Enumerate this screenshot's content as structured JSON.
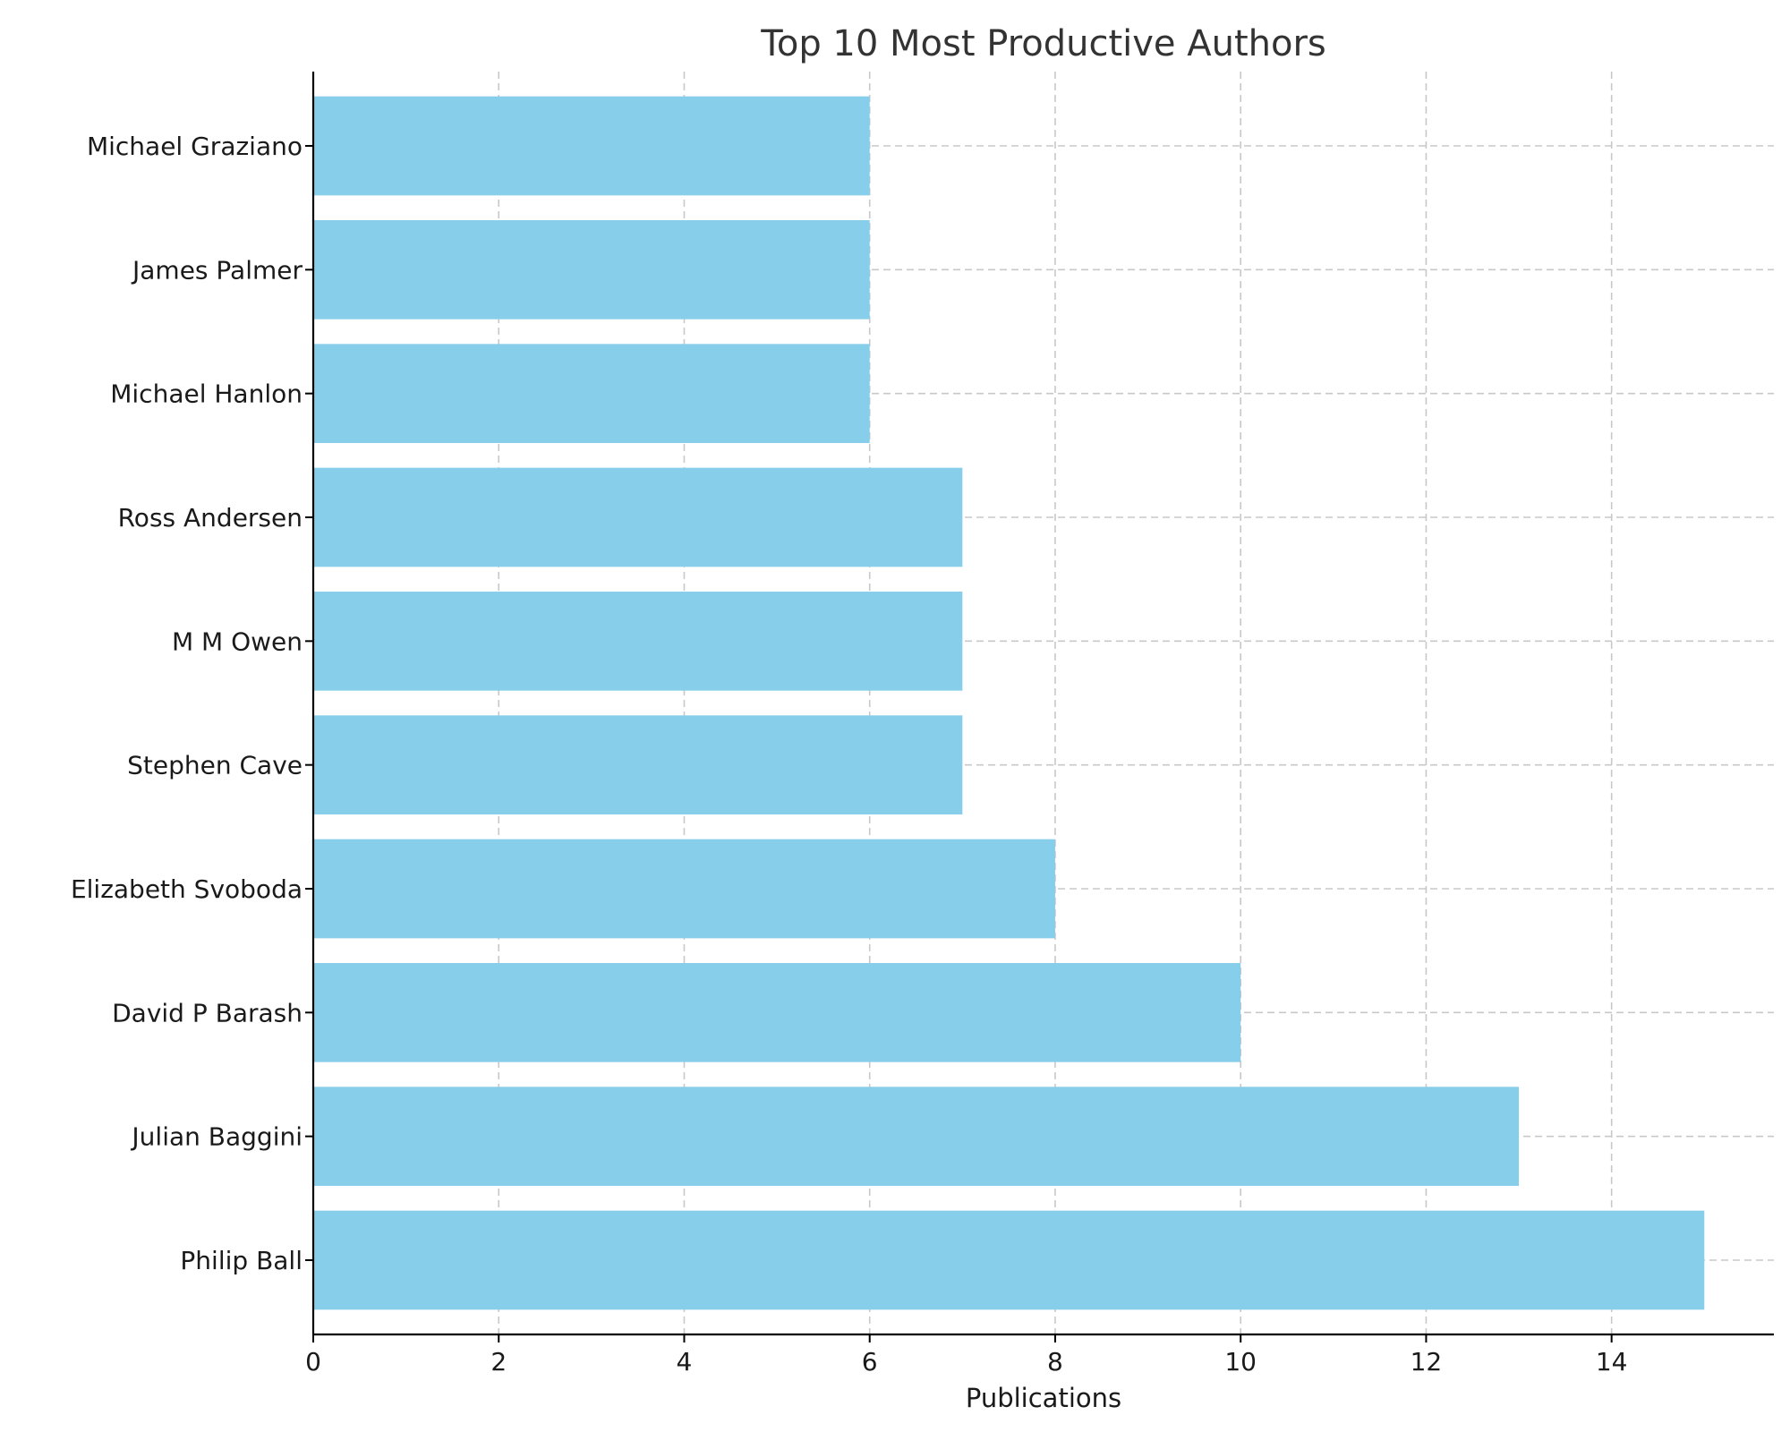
{
  "chart_data": {
    "type": "bar",
    "orientation": "horizontal",
    "title": "Top 10 Most Productive Authors",
    "xlabel": "Publications",
    "ylabel": "",
    "categories": [
      "Philip Ball",
      "Julian Baggini",
      "David P Barash",
      "Elizabeth Svoboda",
      "Stephen Cave",
      "M M Owen",
      "Ross Andersen",
      "Michael Hanlon",
      "James Palmer",
      "Michael Graziano"
    ],
    "values": [
      15,
      13,
      10,
      8,
      7,
      7,
      7,
      6,
      6,
      6
    ],
    "xlim": [
      0,
      15.75
    ],
    "xticks": [
      0,
      2,
      4,
      6,
      8,
      10,
      12,
      14
    ],
    "grid": true,
    "bar_color": "#87ceeb"
  }
}
